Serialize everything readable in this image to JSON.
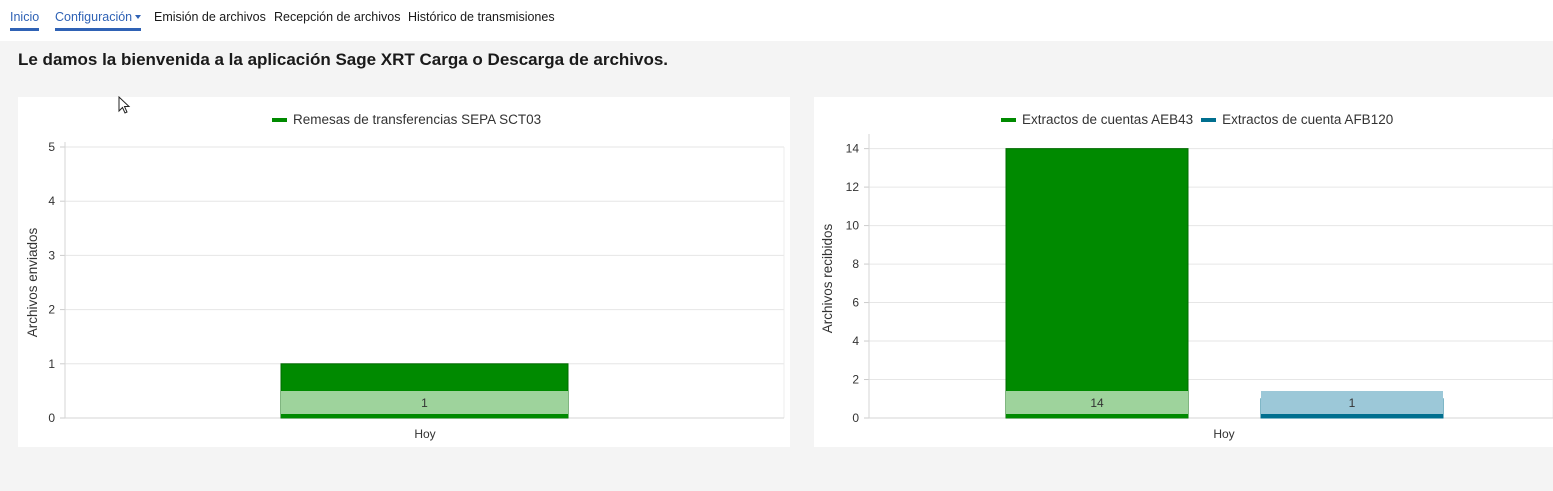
{
  "nav": {
    "items": [
      {
        "label": "Inicio"
      },
      {
        "label": "Configuración"
      },
      {
        "label": "Emisión de archivos"
      },
      {
        "label": "Recepción de archivos"
      },
      {
        "label": "Histórico de transmisiones"
      }
    ]
  },
  "welcome": "Le damos la bienvenida a la aplicación Sage XRT Carga o Descarga de archivos.",
  "colors": {
    "accent": "#2f62b5",
    "green": "#008a00",
    "green_light": "#9ed39c",
    "teal": "#006f8f",
    "teal_light": "#9cc8d8"
  },
  "chart_data": [
    {
      "type": "bar",
      "title": "",
      "xlabel": "",
      "ylabel": "Archivos enviados",
      "categories": [
        "Hoy"
      ],
      "ylim": [
        0,
        5
      ],
      "yticks": [
        "0",
        "1",
        "2",
        "3",
        "4",
        "5"
      ],
      "legend_position": "top-center",
      "series": [
        {
          "name": "Remesas de transferencias SEPA SCT03",
          "values": [
            1
          ],
          "data_labels": [
            "1"
          ]
        }
      ]
    },
    {
      "type": "bar",
      "title": "",
      "xlabel": "",
      "ylabel": "Archivos recibidos",
      "categories": [
        "Hoy"
      ],
      "ylim": [
        0,
        14.5
      ],
      "yticks": [
        "0",
        "2",
        "4",
        "6",
        "8",
        "10",
        "12",
        "14"
      ],
      "legend_position": "top-center",
      "series": [
        {
          "name": "Extractos de cuentas AEB43",
          "values": [
            14
          ],
          "data_labels": [
            "14"
          ]
        },
        {
          "name": "Extractos de cuenta AFB120",
          "values": [
            1
          ],
          "data_labels": [
            "1"
          ]
        }
      ]
    }
  ]
}
